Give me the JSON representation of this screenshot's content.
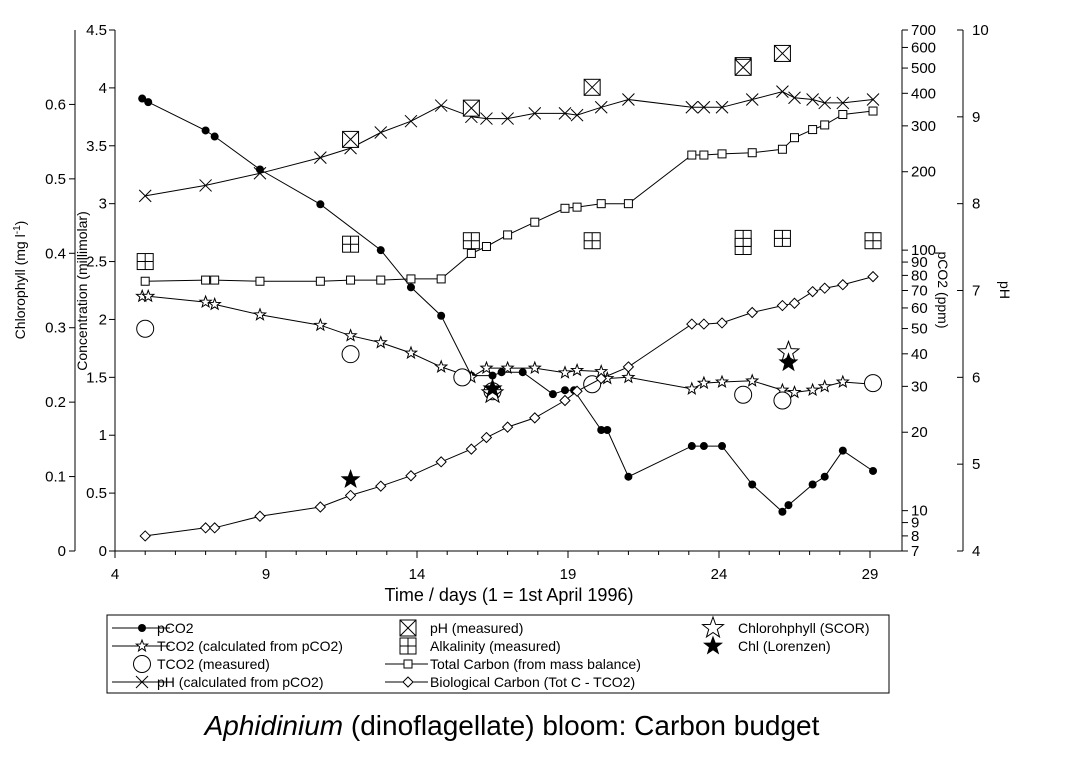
{
  "chart_data": {
    "type": "line",
    "caption_italic": "Aphidinium",
    "caption_rest": " (dinoflagellate) bloom: Carbon budget",
    "xlabel": "Time / days (1 = 1st April 1996)",
    "xlim": [
      4,
      30
    ],
    "xticks": [
      4,
      9,
      14,
      19,
      24,
      29
    ],
    "axes": {
      "concentration": {
        "label": "Concentration (millimolar)",
        "ylim": [
          0,
          4.5
        ],
        "ticks": [
          0,
          0.5,
          1,
          1.5,
          2,
          2.5,
          3,
          3.5,
          4,
          4.5
        ]
      },
      "chlorophyll": {
        "label": "Chlorophyll (mg l-1)",
        "label_main": "Chlorophyll (mg l",
        "label_sup": "-1",
        "label_end": ")",
        "ylim": [
          0,
          0.7
        ],
        "ticks": [
          0,
          0.1,
          0.2,
          0.3,
          0.4,
          0.5,
          0.6
        ]
      },
      "pco2": {
        "label": "pCO2 (ppm)",
        "scale": "log",
        "ylim": [
          7,
          700
        ],
        "ticks": [
          7,
          8,
          9,
          10,
          20,
          30,
          40,
          50,
          60,
          70,
          80,
          90,
          100,
          200,
          300,
          400,
          500,
          600,
          700
        ]
      },
      "ph": {
        "label": "pH",
        "ylim": [
          4,
          10
        ],
        "ticks": [
          4,
          5,
          6,
          7,
          8,
          9,
          10
        ]
      }
    },
    "series": [
      {
        "name": "pCO2",
        "axis": "pco2",
        "marker": "filled-circle",
        "line": true,
        "x": [
          4.9,
          5.1,
          7.0,
          7.3,
          8.8,
          10.8,
          12.8,
          13.8,
          14.8,
          15.8,
          16.5,
          16.8,
          17.5,
          18.5,
          18.9,
          19.2,
          20.1,
          20.3,
          21.0,
          23.1,
          23.5,
          24.1,
          25.1,
          26.1,
          26.3,
          27.1,
          27.5,
          28.1,
          29.1
        ],
        "y": [
          382,
          370,
          288,
          273,
          204,
          150,
          100,
          72,
          56,
          33,
          33,
          34,
          34,
          28,
          29,
          29,
          20.4,
          20.4,
          13.5,
          17.7,
          17.7,
          17.7,
          12.6,
          9.9,
          10.5,
          12.6,
          13.5,
          17.0,
          14.2
        ]
      },
      {
        "name": "TCO2 (calculated from pCO2)",
        "axis": "concentration",
        "marker": "open-star",
        "line": true,
        "x": [
          4.9,
          5.1,
          7.0,
          7.3,
          8.8,
          10.8,
          11.8,
          12.8,
          13.8,
          14.8,
          15.8,
          16.3,
          17.0,
          17.9,
          18.9,
          19.3,
          20.1,
          20.3,
          21.0,
          23.1,
          23.5,
          24.1,
          25.1,
          26.1,
          26.5,
          27.1,
          27.5,
          28.1,
          29.1
        ],
        "y": [
          2.2,
          2.2,
          2.15,
          2.13,
          2.04,
          1.95,
          1.86,
          1.8,
          1.71,
          1.59,
          1.5,
          1.58,
          1.58,
          1.58,
          1.54,
          1.56,
          1.55,
          1.49,
          1.5,
          1.4,
          1.45,
          1.46,
          1.47,
          1.39,
          1.37,
          1.39,
          1.42,
          1.46,
          1.44
        ]
      },
      {
        "name": "TCO2 (measured)",
        "axis": "concentration",
        "marker": "open-circle",
        "line": false,
        "x": [
          5.0,
          11.8,
          15.5,
          16.5,
          19.8,
          24.8,
          26.1,
          29.1
        ],
        "y": [
          1.92,
          1.7,
          1.5,
          1.38,
          1.44,
          1.35,
          1.3,
          1.45
        ]
      },
      {
        "name": "pH (calculated from pCO2)",
        "axis": "ph",
        "marker": "x",
        "line": true,
        "x": [
          5.0,
          7.0,
          8.8,
          10.8,
          11.8,
          12.8,
          13.8,
          14.8,
          15.8,
          16.3,
          17.0,
          17.9,
          18.9,
          19.3,
          20.1,
          21.0,
          23.1,
          23.5,
          24.1,
          25.1,
          26.1,
          26.5,
          27.1,
          27.5,
          28.1,
          29.1
        ],
        "y": [
          8.09,
          8.21,
          8.35,
          8.53,
          8.64,
          8.82,
          8.95,
          9.13,
          9.0,
          8.98,
          8.98,
          9.04,
          9.04,
          9.02,
          9.11,
          9.2,
          9.11,
          9.11,
          9.11,
          9.2,
          9.29,
          9.22,
          9.2,
          9.16,
          9.16,
          9.2
        ]
      },
      {
        "name": "pH (measured)",
        "axis": "ph",
        "marker": "boxed-x",
        "line": false,
        "x": [
          11.8,
          15.8,
          19.8,
          24.8,
          24.8,
          26.1
        ],
        "y": [
          8.74,
          9.1,
          9.34,
          9.59,
          9.57,
          9.73
        ]
      },
      {
        "name": "Alkalinity (measured)",
        "axis": "concentration",
        "marker": "boxed-plus",
        "line": false,
        "x": [
          5.0,
          11.8,
          15.8,
          19.8,
          24.8,
          24.8,
          26.1,
          29.1
        ],
        "y": [
          2.5,
          2.65,
          2.68,
          2.68,
          2.63,
          2.7,
          2.7,
          2.68
        ]
      },
      {
        "name": "Total Carbon (from mass balance)",
        "axis": "concentration",
        "marker": "open-square",
        "line": true,
        "x": [
          5.0,
          7.0,
          7.3,
          8.8,
          10.8,
          11.8,
          12.8,
          13.8,
          14.8,
          15.8,
          16.3,
          17.0,
          17.9,
          18.9,
          19.3,
          20.1,
          21.0,
          23.1,
          23.5,
          24.1,
          25.1,
          26.1,
          26.5,
          27.1,
          27.5,
          28.1,
          29.1
        ],
        "y": [
          2.33,
          2.34,
          2.34,
          2.33,
          2.33,
          2.34,
          2.34,
          2.35,
          2.35,
          2.57,
          2.63,
          2.73,
          2.84,
          2.96,
          2.97,
          3.0,
          3.0,
          3.42,
          3.42,
          3.43,
          3.44,
          3.47,
          3.57,
          3.64,
          3.68,
          3.77,
          3.8
        ]
      },
      {
        "name": "Biological Carbon (Tot C - TCO2)",
        "axis": "concentration",
        "marker": "open-diamond",
        "line": true,
        "x": [
          5.0,
          7.0,
          7.3,
          8.8,
          10.8,
          11.8,
          12.8,
          13.8,
          14.8,
          15.8,
          16.3,
          17.0,
          17.9,
          18.9,
          19.3,
          20.1,
          21.0,
          23.1,
          23.5,
          24.1,
          25.1,
          26.1,
          26.5,
          27.1,
          27.5,
          28.1,
          29.1
        ],
        "y": [
          0.13,
          0.2,
          0.2,
          0.3,
          0.38,
          0.48,
          0.56,
          0.65,
          0.77,
          0.88,
          0.98,
          1.07,
          1.15,
          1.3,
          1.38,
          1.49,
          1.59,
          1.96,
          1.96,
          1.97,
          2.06,
          2.12,
          2.14,
          2.24,
          2.27,
          2.3,
          2.37
        ]
      },
      {
        "name": "Chlorohphyll (SCOR)",
        "axis": "chlorophyll",
        "marker": "open-star-large",
        "line": false,
        "x": [
          16.5,
          26.3
        ],
        "y": [
          0.212,
          0.267
        ]
      },
      {
        "name": "Chl (Lorenzen)",
        "axis": "chlorophyll",
        "marker": "filled-star-large",
        "line": false,
        "x": [
          11.8,
          16.5,
          26.3
        ],
        "y": [
          0.096,
          0.218,
          0.253
        ]
      }
    ],
    "legend": {
      "position": "bottom",
      "items": [
        {
          "label": "pCO2",
          "marker": "filled-circle",
          "line": true
        },
        {
          "label": "TCO2 (calculated from pCO2)",
          "marker": "open-star",
          "line": true
        },
        {
          "label": "TCO2 (measured)",
          "marker": "open-circle",
          "line": false
        },
        {
          "label": "pH (calculated from pCO2)",
          "marker": "x",
          "line": true
        },
        {
          "label": "pH (measured)",
          "marker": "boxed-x",
          "line": false
        },
        {
          "label": "Alkalinity (measured)",
          "marker": "boxed-plus",
          "line": false
        },
        {
          "label": "Total Carbon (from mass balance)",
          "marker": "open-square",
          "line": true
        },
        {
          "label": "Biological Carbon (Tot C - TCO2)",
          "marker": "open-diamond",
          "line": true
        },
        {
          "label": "Chlorohphyll (SCOR)",
          "marker": "open-star-large",
          "line": false
        },
        {
          "label": "Chl (Lorenzen)",
          "marker": "filled-star-large",
          "line": false
        }
      ]
    },
    "grid": false
  }
}
